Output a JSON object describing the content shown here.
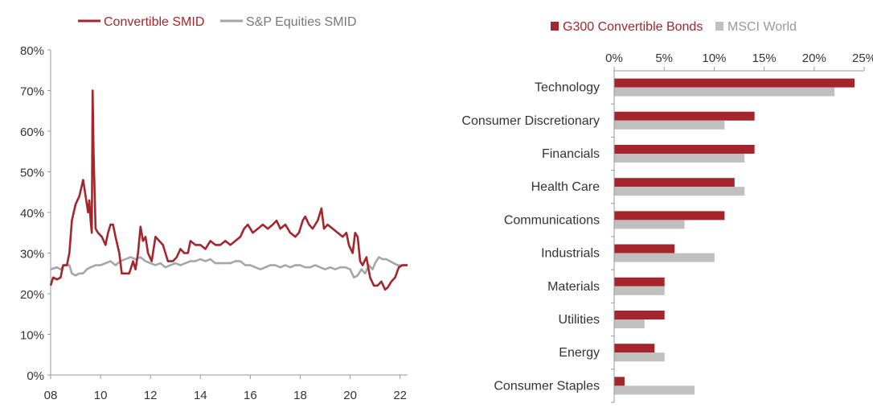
{
  "chart_data": [
    {
      "type": "line",
      "title": "",
      "xlabel": "",
      "ylabel": "",
      "ylim": [
        0,
        80
      ],
      "xlim": [
        2008,
        2022.3
      ],
      "x_tick_labels": [
        "08",
        "10",
        "12",
        "14",
        "16",
        "18",
        "20",
        "22"
      ],
      "x_tick_values": [
        2008,
        2010,
        2012,
        2014,
        2016,
        2018,
        2020,
        2022
      ],
      "y_tick_labels": [
        "0%",
        "10%",
        "20%",
        "30%",
        "40%",
        "50%",
        "60%",
        "70%",
        "80%"
      ],
      "y_tick_values": [
        0,
        10,
        20,
        30,
        40,
        50,
        60,
        70,
        80
      ],
      "legend_position": "top",
      "series": [
        {
          "name": "Convertible SMID",
          "color": "#a4262c",
          "points": [
            [
              2008.0,
              22
            ],
            [
              2008.1,
              24
            ],
            [
              2008.25,
              23.5
            ],
            [
              2008.4,
              24
            ],
            [
              2008.5,
              27
            ],
            [
              2008.65,
              27
            ],
            [
              2008.75,
              30
            ],
            [
              2008.85,
              38
            ],
            [
              2009.0,
              42
            ],
            [
              2009.15,
              44
            ],
            [
              2009.3,
              48
            ],
            [
              2009.4,
              44
            ],
            [
              2009.5,
              40
            ],
            [
              2009.55,
              43
            ],
            [
              2009.6,
              38
            ],
            [
              2009.65,
              35
            ],
            [
              2009.68,
              70
            ],
            [
              2009.72,
              55
            ],
            [
              2009.8,
              36
            ],
            [
              2009.9,
              35
            ],
            [
              2010.05,
              34
            ],
            [
              2010.2,
              32
            ],
            [
              2010.3,
              35
            ],
            [
              2010.4,
              37
            ],
            [
              2010.5,
              37
            ],
            [
              2010.6,
              34
            ],
            [
              2010.75,
              30
            ],
            [
              2010.85,
              25
            ],
            [
              2011.0,
              25
            ],
            [
              2011.15,
              25
            ],
            [
              2011.3,
              28
            ],
            [
              2011.4,
              26
            ],
            [
              2011.5,
              30
            ],
            [
              2011.6,
              36.5
            ],
            [
              2011.7,
              33
            ],
            [
              2011.8,
              34
            ],
            [
              2011.9,
              30
            ],
            [
              2012.05,
              28
            ],
            [
              2012.2,
              34
            ],
            [
              2012.35,
              33
            ],
            [
              2012.5,
              32
            ],
            [
              2012.7,
              28
            ],
            [
              2012.9,
              28
            ],
            [
              2013.05,
              29
            ],
            [
              2013.2,
              31
            ],
            [
              2013.35,
              30
            ],
            [
              2013.5,
              30
            ],
            [
              2013.6,
              33
            ],
            [
              2013.8,
              32
            ],
            [
              2014.0,
              32
            ],
            [
              2014.2,
              31
            ],
            [
              2014.4,
              33
            ],
            [
              2014.6,
              32
            ],
            [
              2014.8,
              32
            ],
            [
              2015.0,
              33
            ],
            [
              2015.2,
              32
            ],
            [
              2015.4,
              33
            ],
            [
              2015.6,
              34
            ],
            [
              2015.75,
              36
            ],
            [
              2015.9,
              37
            ],
            [
              2016.1,
              35
            ],
            [
              2016.3,
              36
            ],
            [
              2016.5,
              37
            ],
            [
              2016.7,
              36
            ],
            [
              2016.9,
              37
            ],
            [
              2017.05,
              38
            ],
            [
              2017.2,
              36
            ],
            [
              2017.4,
              37
            ],
            [
              2017.6,
              35
            ],
            [
              2017.8,
              34
            ],
            [
              2017.95,
              35
            ],
            [
              2018.1,
              38
            ],
            [
              2018.2,
              39
            ],
            [
              2018.35,
              37
            ],
            [
              2018.5,
              36
            ],
            [
              2018.7,
              38
            ],
            [
              2018.85,
              41
            ],
            [
              2018.95,
              36
            ],
            [
              2019.1,
              37
            ],
            [
              2019.3,
              36
            ],
            [
              2019.5,
              35
            ],
            [
              2019.7,
              34
            ],
            [
              2019.85,
              35
            ],
            [
              2019.95,
              32
            ],
            [
              2020.1,
              30
            ],
            [
              2020.2,
              35
            ],
            [
              2020.3,
              34
            ],
            [
              2020.4,
              28
            ],
            [
              2020.5,
              27
            ],
            [
              2020.65,
              29
            ],
            [
              2020.8,
              24
            ],
            [
              2020.95,
              22
            ],
            [
              2021.1,
              22
            ],
            [
              2021.25,
              23
            ],
            [
              2021.4,
              21
            ],
            [
              2021.5,
              21.5
            ],
            [
              2021.65,
              23
            ],
            [
              2021.8,
              24
            ],
            [
              2021.95,
              26.5
            ],
            [
              2022.1,
              27
            ],
            [
              2022.3,
              27
            ]
          ]
        },
        {
          "name": "S&P Equities SMID",
          "color": "#a6a6a6",
          "points": [
            [
              2008.0,
              26
            ],
            [
              2008.25,
              26.5
            ],
            [
              2008.4,
              26
            ],
            [
              2008.55,
              27
            ],
            [
              2008.75,
              27
            ],
            [
              2008.85,
              25
            ],
            [
              2009.0,
              24.5
            ],
            [
              2009.15,
              25
            ],
            [
              2009.3,
              25
            ],
            [
              2009.45,
              26
            ],
            [
              2009.6,
              26.5
            ],
            [
              2009.8,
              27
            ],
            [
              2010.0,
              27
            ],
            [
              2010.2,
              27.5
            ],
            [
              2010.4,
              28
            ],
            [
              2010.6,
              27
            ],
            [
              2010.8,
              28
            ],
            [
              2011.0,
              28.5
            ],
            [
              2011.2,
              29
            ],
            [
              2011.4,
              28.5
            ],
            [
              2011.6,
              29
            ],
            [
              2011.8,
              28
            ],
            [
              2012.0,
              27.5
            ],
            [
              2012.2,
              27
            ],
            [
              2012.4,
              27.5
            ],
            [
              2012.6,
              26.5
            ],
            [
              2012.8,
              27
            ],
            [
              2013.0,
              27.5
            ],
            [
              2013.2,
              27
            ],
            [
              2013.4,
              27.5
            ],
            [
              2013.6,
              28
            ],
            [
              2013.8,
              28
            ],
            [
              2014.0,
              28.5
            ],
            [
              2014.2,
              28
            ],
            [
              2014.4,
              28.5
            ],
            [
              2014.6,
              27.5
            ],
            [
              2014.8,
              27.5
            ],
            [
              2015.0,
              27.5
            ],
            [
              2015.2,
              27.5
            ],
            [
              2015.4,
              28
            ],
            [
              2015.6,
              28
            ],
            [
              2015.8,
              27
            ],
            [
              2016.0,
              27
            ],
            [
              2016.2,
              26.5
            ],
            [
              2016.4,
              26
            ],
            [
              2016.6,
              26.5
            ],
            [
              2016.8,
              27
            ],
            [
              2017.0,
              27
            ],
            [
              2017.2,
              26.5
            ],
            [
              2017.4,
              27
            ],
            [
              2017.6,
              26.5
            ],
            [
              2017.8,
              27
            ],
            [
              2018.0,
              27
            ],
            [
              2018.2,
              26.5
            ],
            [
              2018.4,
              26.5
            ],
            [
              2018.6,
              27
            ],
            [
              2018.8,
              26.5
            ],
            [
              2019.0,
              26
            ],
            [
              2019.2,
              26.5
            ],
            [
              2019.4,
              26
            ],
            [
              2019.6,
              26.5
            ],
            [
              2019.8,
              26.5
            ],
            [
              2020.0,
              26
            ],
            [
              2020.15,
              24
            ],
            [
              2020.3,
              24.5
            ],
            [
              2020.45,
              26
            ],
            [
              2020.6,
              25
            ],
            [
              2020.75,
              27
            ],
            [
              2020.9,
              26
            ],
            [
              2021.0,
              27.5
            ],
            [
              2021.15,
              29
            ],
            [
              2021.3,
              28.5
            ],
            [
              2021.45,
              28.5
            ],
            [
              2021.6,
              28
            ],
            [
              2021.75,
              27.5
            ],
            [
              2021.9,
              27
            ],
            [
              2022.1,
              27
            ],
            [
              2022.3,
              27
            ]
          ]
        }
      ]
    },
    {
      "type": "bar",
      "orientation": "horizontal",
      "title": "",
      "xlabel": "",
      "ylabel": "",
      "xlim": [
        0,
        25
      ],
      "x_tick_labels": [
        "0%",
        "5%",
        "10%",
        "15%",
        "20%",
        "25%"
      ],
      "x_tick_values": [
        0,
        5,
        10,
        15,
        20,
        25
      ],
      "legend_position": "top",
      "categories": [
        "Technology",
        "Consumer Discretionary",
        "Financials",
        "Health Care",
        "Communications",
        "Industrials",
        "Materials",
        "Utilities",
        "Energy",
        "Consumer Staples"
      ],
      "series": [
        {
          "name": "G300 Convertible Bonds",
          "color": "#a4262c",
          "values": [
            24,
            14,
            14,
            12,
            11,
            6,
            5,
            5,
            4,
            1
          ]
        },
        {
          "name": "MSCI World",
          "color": "#c0c0c0",
          "values": [
            22,
            11,
            13,
            13,
            7,
            10,
            5,
            3,
            5,
            8
          ]
        }
      ]
    }
  ]
}
